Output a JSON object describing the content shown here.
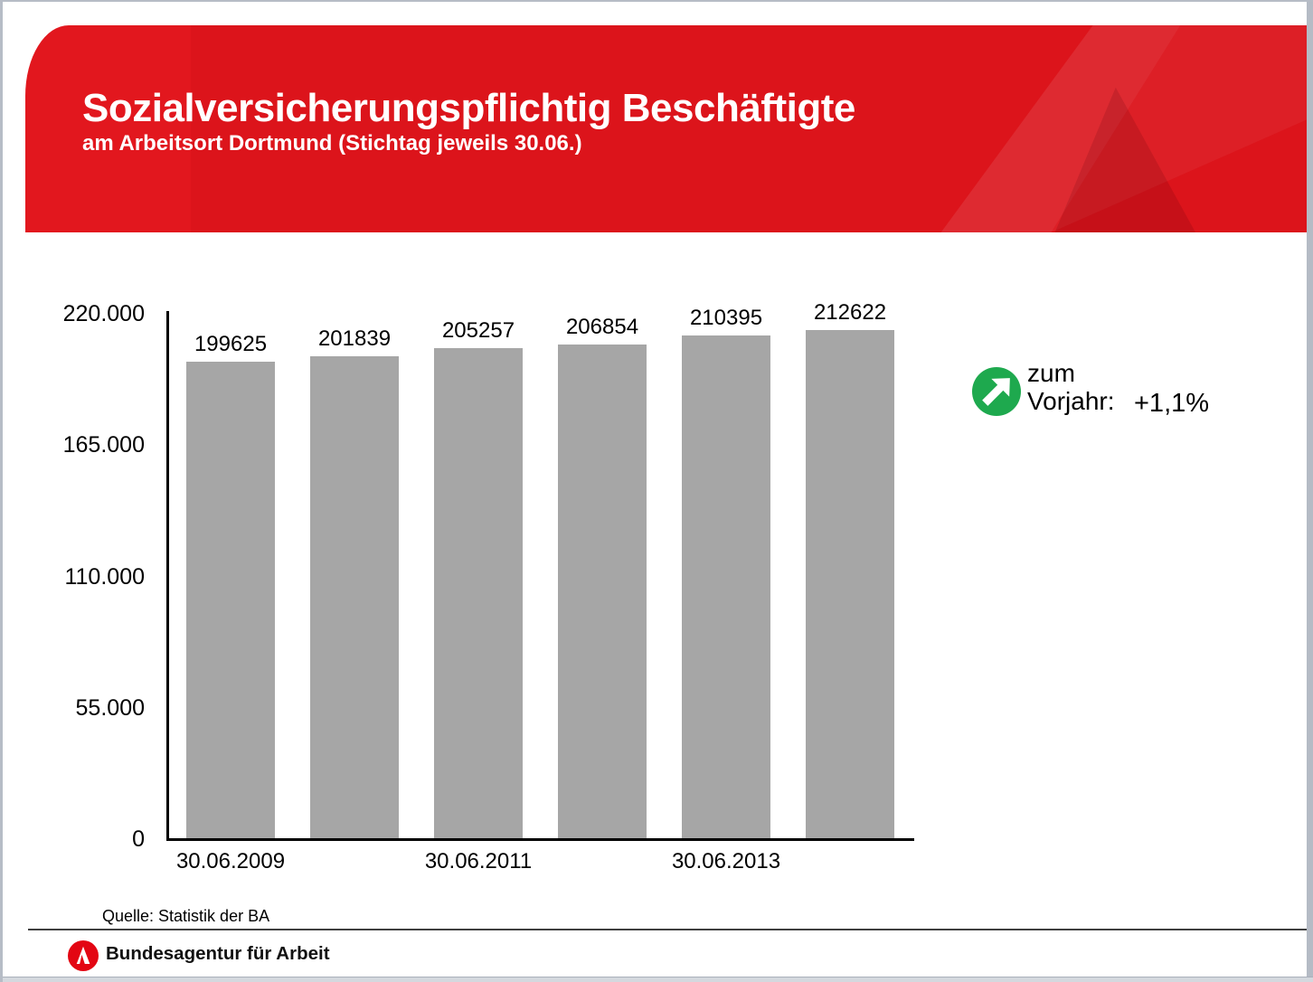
{
  "header": {
    "title": "Sozialversicherungspflichtig Beschäftigte",
    "subtitle": "am Arbeitsort Dortmund (Stichtag jeweils 30.06.)",
    "banner_color": "#dd151c",
    "text_color": "#ffffff"
  },
  "chart_data": {
    "type": "bar",
    "title": "Sozialversicherungspflichtig Beschäftigte am Arbeitsort Dortmund (Stichtag jeweils 30.06.)",
    "values": [
      199625,
      201839,
      205257,
      206854,
      210395,
      212622
    ],
    "bar_labels": [
      "199625",
      "201839",
      "205257",
      "206854",
      "210395",
      "212622"
    ],
    "x_tick_labels": [
      {
        "label": "30.06.2009",
        "bar_index": 0
      },
      {
        "label": "30.06.2011",
        "bar_index": 2
      },
      {
        "label": "30.06.2013",
        "bar_index": 4
      }
    ],
    "y_ticks": [
      {
        "label": "220.000",
        "value": 220000
      },
      {
        "label": "165.000",
        "value": 165000
      },
      {
        "label": "110.000",
        "value": 110000
      },
      {
        "label": "55.000",
        "value": 55000
      },
      {
        "label": "0",
        "value": 0
      }
    ],
    "ylim": [
      0,
      220000
    ],
    "xlabel": "",
    "ylabel": "",
    "grid": false,
    "legend": false,
    "bar_color": "#a6a6a6",
    "axis_color": "#000000"
  },
  "annotation": {
    "line1": "zum",
    "line2": "Vorjahr:",
    "value": "+1,1%",
    "icon": "trend-up-arrow-icon",
    "icon_color": "#1ea94e"
  },
  "footer": {
    "source": "Quelle: Statistik der BA",
    "brand": "Bundesagentur für Arbeit",
    "logo_color": "#e30613"
  }
}
